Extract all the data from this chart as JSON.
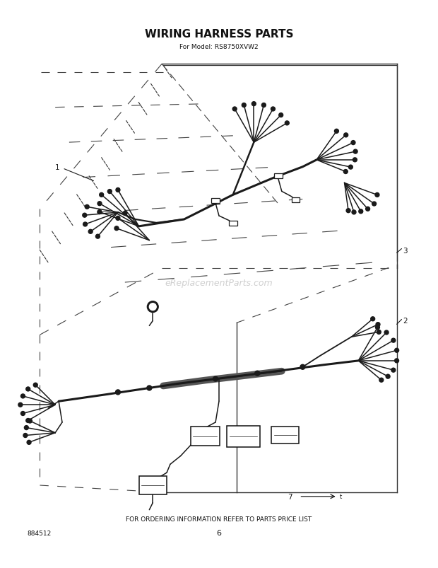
{
  "title": "WIRING HARNESS PARTS",
  "subtitle": "For Model: RS8750XVW2",
  "page_number": "6",
  "part_number": "884512",
  "footer_text": "FOR ORDERING INFORMATION REFER TO PARTS PRICE LIST",
  "watermark": "eReplacementParts.com",
  "background_color": "#ffffff",
  "title_fontsize": 11,
  "subtitle_fontsize": 6.5,
  "label_fontsize": 7.5,
  "footer_fontsize": 6.5,
  "wm_color": "#bbbbbb",
  "wm_fontsize": 9
}
